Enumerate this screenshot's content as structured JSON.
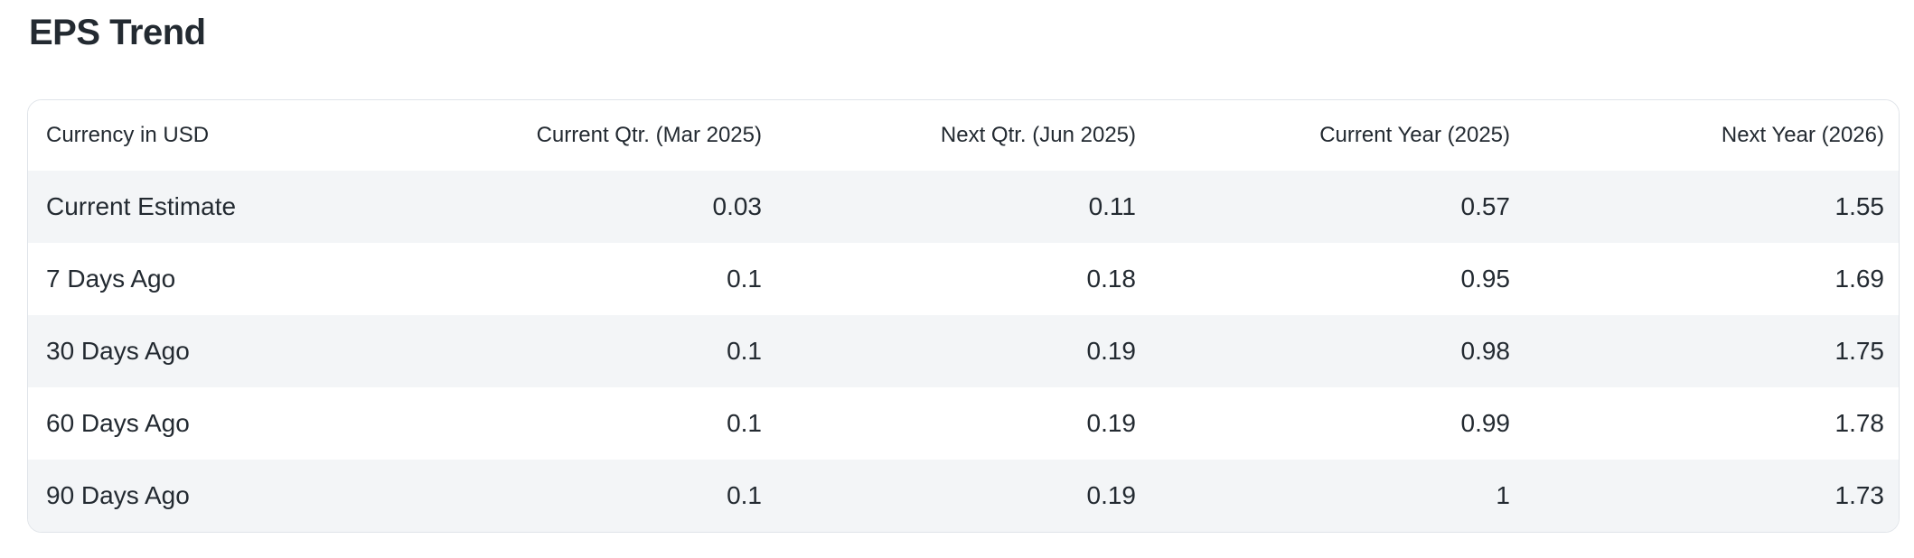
{
  "page": {
    "title": "EPS Trend"
  },
  "table": {
    "columns": [
      "Currency in USD",
      "Current Qtr. (Mar 2025)",
      "Next Qtr. (Jun 2025)",
      "Current Year (2025)",
      "Next Year (2026)"
    ],
    "rows": [
      {
        "label": "Current Estimate",
        "values": [
          "0.03",
          "0.11",
          "0.57",
          "1.55"
        ]
      },
      {
        "label": "7 Days Ago",
        "values": [
          "0.1",
          "0.18",
          "0.95",
          "1.69"
        ]
      },
      {
        "label": "30 Days Ago",
        "values": [
          "0.1",
          "0.19",
          "0.98",
          "1.75"
        ]
      },
      {
        "label": "60 Days Ago",
        "values": [
          "0.1",
          "0.19",
          "0.99",
          "1.78"
        ]
      },
      {
        "label": "90 Days Ago",
        "values": [
          "0.1",
          "0.19",
          "1",
          "1.73"
        ]
      }
    ]
  },
  "colors": {
    "text": "#232a31",
    "row_stripe": "#f3f5f7",
    "card_border": "#e0e4e9",
    "background": "#ffffff"
  }
}
